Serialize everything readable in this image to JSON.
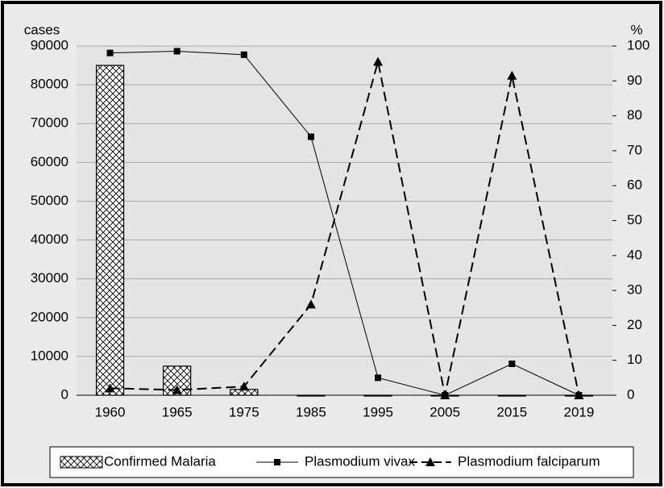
{
  "chart_data": {
    "type": "bar",
    "y_label": "cases",
    "y2_label": "%",
    "categories": [
      "1960",
      "1965",
      "1975",
      "1985",
      "1995",
      "2005",
      "2015",
      "2019"
    ],
    "series": [
      {
        "name": "Confirmed Malaria",
        "type": "bar",
        "axis": "y",
        "color": "#000000",
        "values": [
          85000,
          7500,
          1500,
          0,
          0,
          0,
          0,
          0
        ]
      },
      {
        "name": "Plasmodium vivax",
        "type": "line",
        "axis": "y2",
        "marker": "square",
        "dashed": false,
        "color": "#000000",
        "values": [
          98,
          98.5,
          97.5,
          74,
          5,
          0,
          9,
          0
        ]
      },
      {
        "name": "Plasmodium falciparum",
        "type": "line",
        "axis": "y2",
        "marker": "triangle",
        "dashed": true,
        "color": "#000000",
        "values": [
          2,
          1.5,
          2.5,
          26,
          95.5,
          0,
          91.5,
          0
        ]
      }
    ],
    "ylim": [
      0,
      90000
    ],
    "yticks": [
      0,
      10000,
      20000,
      30000,
      40000,
      50000,
      60000,
      70000,
      80000,
      90000
    ],
    "y2lim": [
      0,
      100
    ],
    "y2ticks": [
      0,
      10,
      20,
      30,
      40,
      50,
      60,
      70,
      80,
      90,
      100
    ],
    "grid": true,
    "legend": "bottom"
  }
}
